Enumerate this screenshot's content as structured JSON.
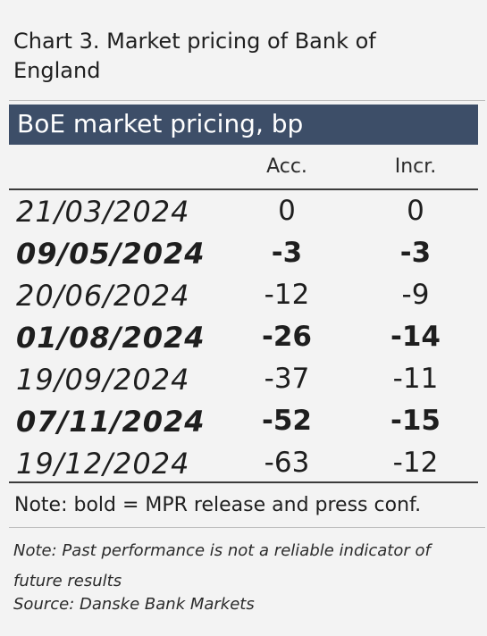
{
  "header": {
    "chart_heading": "Chart 3. Market pricing of Bank of England",
    "table_title": "BoE market pricing, bp"
  },
  "chart_data": {
    "type": "table",
    "title": "BoE market pricing, bp",
    "columns": [
      "",
      "Acc.",
      "Incr."
    ],
    "rows": [
      {
        "date": "21/03/2024",
        "acc": "0",
        "incr": "0",
        "bold": false
      },
      {
        "date": "09/05/2024",
        "acc": "-3",
        "incr": "-3",
        "bold": true
      },
      {
        "date": "20/06/2024",
        "acc": "-12",
        "incr": "-9",
        "bold": false
      },
      {
        "date": "01/08/2024",
        "acc": "-26",
        "incr": "-14",
        "bold": true
      },
      {
        "date": "19/09/2024",
        "acc": "-37",
        "incr": "-11",
        "bold": false
      },
      {
        "date": "07/11/2024",
        "acc": "-52",
        "incr": "-15",
        "bold": true
      },
      {
        "date": "19/12/2024",
        "acc": "-63",
        "incr": "-12",
        "bold": false
      }
    ]
  },
  "notes": {
    "bold_note": "Note: bold = MPR release and press conf.",
    "disclaimer": "Note: Past performance is not a reliable indicator of future results",
    "source": "Source: Danske Bank Markets"
  },
  "colors": {
    "banner": "#3d4e68",
    "background": "#f3f3f3"
  }
}
